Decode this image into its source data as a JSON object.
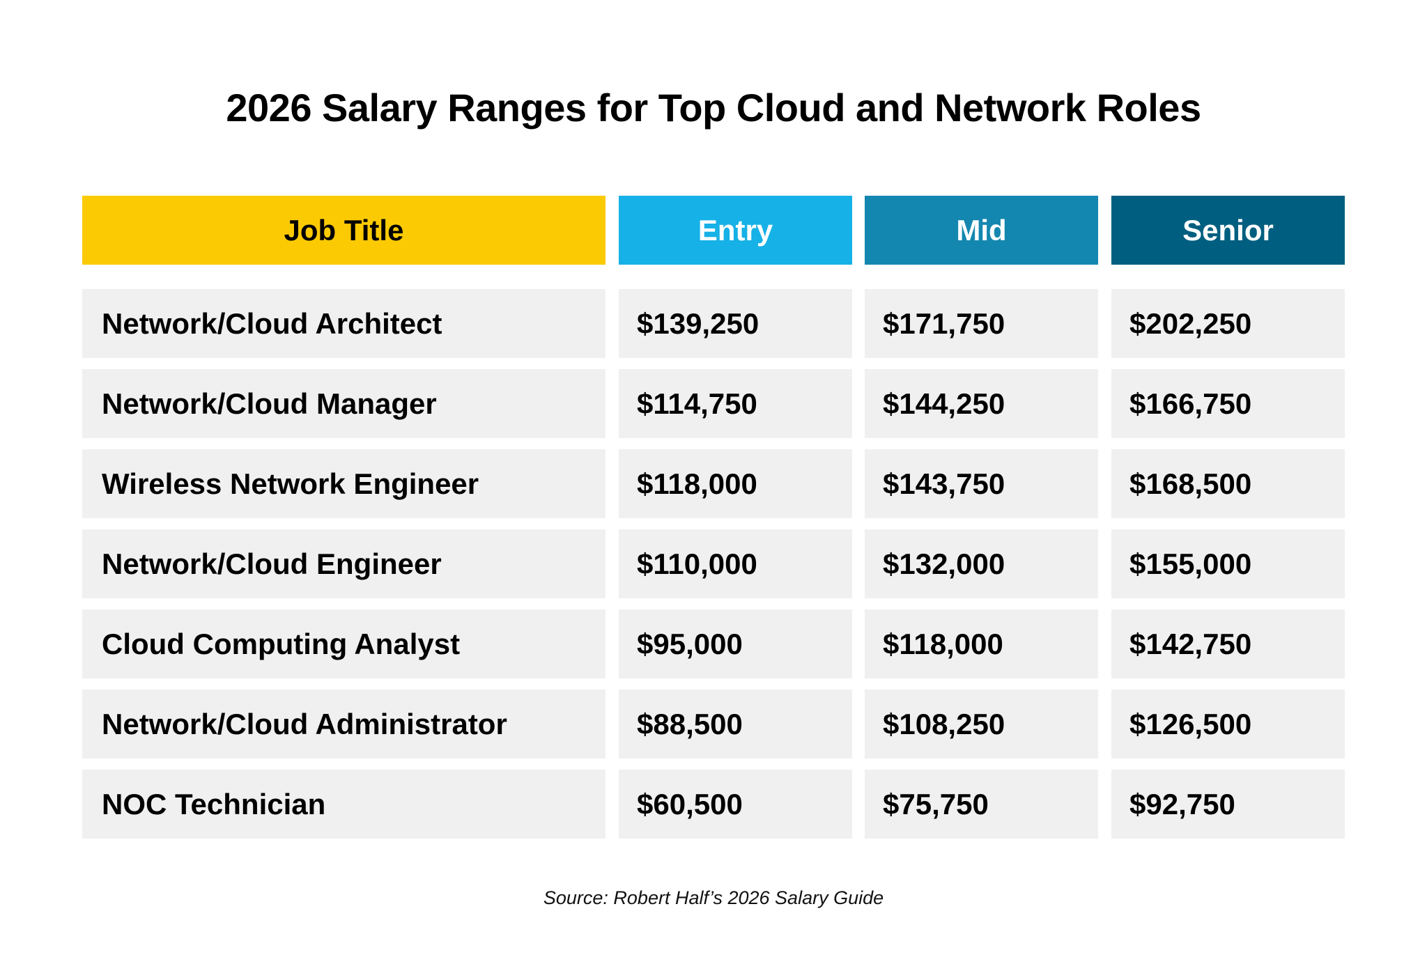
{
  "title": "2026 Salary Ranges for Top Cloud and Network Roles",
  "colors": {
    "job_title_header": "#fcca03",
    "entry_header": "#16b1e6",
    "mid_header": "#1487b0",
    "senior_header": "#005f80",
    "row_background": "#f0f0f0"
  },
  "table": {
    "headers": [
      "Job Title",
      "Entry",
      "Mid",
      "Senior"
    ],
    "rows": [
      [
        "Network/Cloud Architect",
        "$139,250",
        "$171,750",
        "$202,250"
      ],
      [
        "Network/Cloud Manager",
        "$114,750",
        "$144,250",
        "$166,750"
      ],
      [
        "Wireless Network Engineer",
        "$118,000",
        "$143,750",
        "$168,500"
      ],
      [
        "Network/Cloud Engineer",
        "$110,000",
        "$132,000",
        "$155,000"
      ],
      [
        "Cloud Computing Analyst",
        "$95,000",
        "$118,000",
        "$142,750"
      ],
      [
        "Network/Cloud Administrator",
        "$88,500",
        "$108,250",
        "$126,500"
      ],
      [
        "NOC Technician",
        "$60,500",
        "$75,750",
        "$92,750"
      ]
    ]
  },
  "source": "Source: Robert Half’s 2026 Salary Guide"
}
